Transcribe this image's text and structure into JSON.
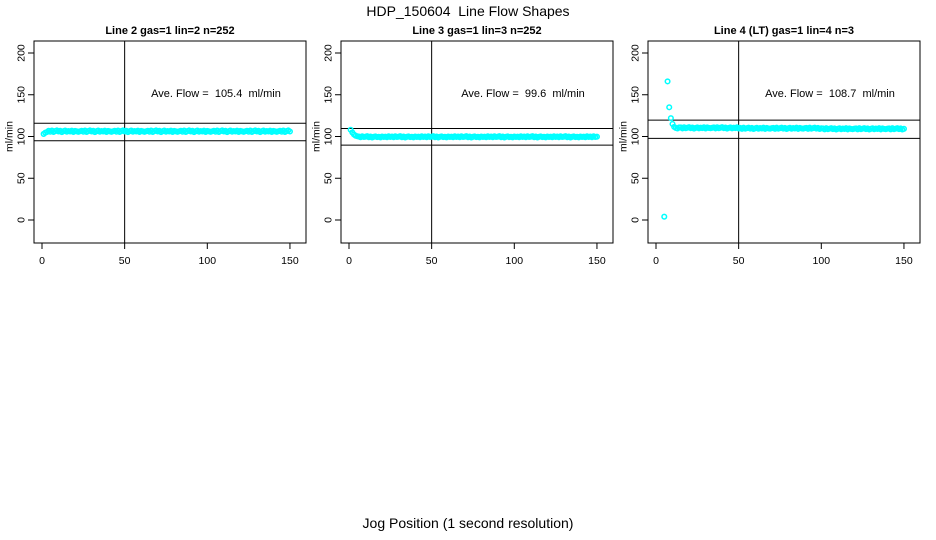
{
  "title": "HDP_150604  Line Flow Shapes",
  "xlabel": "Jog Position (1 second resolution)",
  "point_color": "#00FFFF",
  "axis_color": "#000000",
  "chart_data": [
    {
      "type": "scatter",
      "title": "Line 2 gas=1 lin=2 n=252",
      "gas": 1,
      "lin": 2,
      "n": 252,
      "annotation": "Ave. Flow =  105.4  ml/min",
      "ave_flow_ml_min": 105.4,
      "ylabel": "ml/min",
      "x_ticks": [
        0,
        50,
        100,
        150
      ],
      "y_ticks": [
        0,
        50,
        100,
        150,
        200
      ],
      "ref_vline_x": 50,
      "ref_hlines_y": [
        94.9,
        115.9
      ],
      "x_start": 1,
      "x_step": 1,
      "y": [
        103.1,
        104.6,
        105.4,
        106.9,
        105.8,
        107.2,
        105.5,
        106.5,
        107.3,
        106.0,
        106.8,
        105.3,
        106.4,
        107.1,
        105.7,
        106.6,
        106.1,
        107.0,
        105.4,
        106.7,
        106.2,
        105.6,
        106.3,
        106.9,
        105.8,
        107.2,
        105.5,
        106.5,
        107.3,
        106.0,
        106.8,
        105.3,
        106.4,
        107.1,
        105.7,
        106.6,
        106.1,
        107.0,
        105.4,
        106.7,
        106.2,
        105.6,
        106.3,
        106.9,
        105.8,
        107.2,
        105.5,
        106.5,
        107.3,
        106.0,
        106.8,
        105.3,
        106.4,
        107.1,
        105.7,
        106.6,
        106.1,
        107.0,
        105.4,
        106.7,
        106.2,
        105.6,
        106.3,
        106.9,
        105.8,
        107.2,
        105.5,
        106.5,
        107.3,
        106.0,
        106.8,
        105.3,
        106.4,
        107.1,
        105.7,
        106.6,
        106.1,
        107.0,
        105.4,
        106.7,
        106.2,
        105.6,
        106.3,
        106.9,
        105.8,
        107.2,
        105.5,
        106.5,
        107.3,
        106.0,
        106.8,
        105.3,
        106.4,
        107.1,
        105.7,
        106.6,
        106.1,
        107.0,
        105.4,
        106.7,
        106.2,
        105.6,
        106.3,
        106.9,
        105.8,
        107.2,
        105.5,
        106.5,
        107.3,
        106.0,
        106.8,
        105.3,
        106.4,
        107.1,
        105.7,
        106.6,
        106.1,
        107.0,
        105.4,
        106.7,
        106.2,
        105.6,
        106.3,
        106.9,
        105.8,
        107.2,
        105.5,
        106.5,
        107.3,
        106.0,
        106.8,
        105.3,
        106.4,
        107.1,
        105.7,
        106.6,
        106.1,
        107.0,
        105.4,
        106.7,
        106.2,
        105.6,
        106.3,
        106.9,
        105.8,
        107.2,
        105.5,
        106.5,
        107.3,
        106.0
      ]
    },
    {
      "type": "scatter",
      "title": "Line 3 gas=1 lin=3 n=252",
      "gas": 1,
      "lin": 3,
      "n": 252,
      "annotation": "Ave. Flow =  99.6  ml/min",
      "ave_flow_ml_min": 99.6,
      "ylabel": "ml/min",
      "x_ticks": [
        0,
        50,
        100,
        150
      ],
      "y_ticks": [
        0,
        50,
        100,
        150,
        200
      ],
      "ref_vline_x": 50,
      "ref_hlines_y": [
        89.6,
        109.6
      ],
      "x_start": 1,
      "x_step": 1,
      "y": [
        108.1,
        104.9,
        102.4,
        101.0,
        100.3,
        99.9,
        99.1,
        100.2,
        99.4,
        99.8,
        100.4,
        99.2,
        99.9,
        98.9,
        99.6,
        100.1,
        99.3,
        99.7,
        99.0,
        100.0,
        99.5,
        99.8,
        99.2,
        100.3,
        99.4,
        99.9,
        99.1,
        100.2,
        99.4,
        99.8,
        100.4,
        99.2,
        99.9,
        98.9,
        99.6,
        100.1,
        99.3,
        99.7,
        99.0,
        100.0,
        99.5,
        99.8,
        99.2,
        100.3,
        99.4,
        99.9,
        99.1,
        100.2,
        99.4,
        99.8,
        100.4,
        99.2,
        99.9,
        98.9,
        99.6,
        100.1,
        99.3,
        99.7,
        99.0,
        100.0,
        99.5,
        99.8,
        99.2,
        100.3,
        99.4,
        99.9,
        99.1,
        100.2,
        99.4,
        99.8,
        100.4,
        99.2,
        99.9,
        98.9,
        99.6,
        100.1,
        99.3,
        99.7,
        99.0,
        100.0,
        99.5,
        99.8,
        99.2,
        100.3,
        99.4,
        99.9,
        99.1,
        100.2,
        99.4,
        99.8,
        100.4,
        99.2,
        99.9,
        98.9,
        99.6,
        100.1,
        99.3,
        99.7,
        99.0,
        100.0,
        99.5,
        99.8,
        99.2,
        100.3,
        99.4,
        99.9,
        99.1,
        100.2,
        99.4,
        99.8,
        100.4,
        99.2,
        99.9,
        98.9,
        99.6,
        100.1,
        99.3,
        99.7,
        99.0,
        100.0,
        99.5,
        99.8,
        99.2,
        100.3,
        99.4,
        99.9,
        99.1,
        100.2,
        99.4,
        99.8,
        100.4,
        99.2,
        99.9,
        98.9,
        99.6,
        100.1,
        99.3,
        99.7,
        99.0,
        100.0,
        99.5,
        99.8,
        99.2,
        100.3,
        99.4,
        99.9,
        99.1,
        100.2,
        99.4,
        99.8
      ]
    },
    {
      "type": "scatter",
      "title": "Line 4 (LT) gas=1 lin=4 n=3",
      "gas": 1,
      "lin": 4,
      "n": 3,
      "annotation": "Ave. Flow =  108.7  ml/min",
      "ave_flow_ml_min": 108.7,
      "ylabel": "ml/min",
      "x_ticks": [
        0,
        50,
        100,
        150
      ],
      "y_ticks": [
        0,
        50,
        100,
        150,
        200
      ],
      "ref_vline_x": 50,
      "ref_hlines_y": [
        97.8,
        119.6
      ],
      "x_start": 1,
      "x_step": 1,
      "y": [
        null,
        null,
        null,
        null,
        4,
        null,
        166,
        135,
        122,
        115,
        111.5,
        110.2,
        109.6,
        110.8,
        110.9,
        109.7,
        111.0,
        109.9,
        110.5,
        111.1,
        110.0,
        110.7,
        109.5,
        110.3,
        110.9,
        109.8,
        110.6,
        110.1,
        111.0,
        109.6,
        110.8,
        110.2,
        109.9,
        110.4,
        110.9,
        109.7,
        111.0,
        109.9,
        110.5,
        111.1,
        110.0,
        110.7,
        109.5,
        110.3,
        110.9,
        109.8,
        110.6,
        110.1,
        111.0,
        109.6,
        110.3,
        109.2,
        110.5,
        109.4,
        110.0,
        110.6,
        109.5,
        110.2,
        109.0,
        109.8,
        110.4,
        109.3,
        110.1,
        109.6,
        110.5,
        109.1,
        110.3,
        109.7,
        109.4,
        109.9,
        110.3,
        109.2,
        110.5,
        109.4,
        110.0,
        110.6,
        109.5,
        110.2,
        109.0,
        109.8,
        110.4,
        109.3,
        110.1,
        109.6,
        110.5,
        109.1,
        110.3,
        109.7,
        109.4,
        109.9,
        110.3,
        109.2,
        110.5,
        109.4,
        110.0,
        110.6,
        109.5,
        110.2,
        109.0,
        109.8,
        109.7,
        108.6,
        109.9,
        108.8,
        109.4,
        110.0,
        108.9,
        109.6,
        108.4,
        109.2,
        109.8,
        108.7,
        109.5,
        109.0,
        109.9,
        108.5,
        109.7,
        109.1,
        108.8,
        109.3,
        109.7,
        108.6,
        109.9,
        108.8,
        109.4,
        110.0,
        108.9,
        109.6,
        108.4,
        109.2,
        109.8,
        108.7,
        109.5,
        109.0,
        109.9,
        108.5,
        109.7,
        109.1,
        108.8,
        109.3,
        109.7,
        108.6,
        109.9,
        108.8,
        109.4,
        110.0,
        108.9,
        109.6,
        108.4,
        109.2
      ]
    }
  ]
}
